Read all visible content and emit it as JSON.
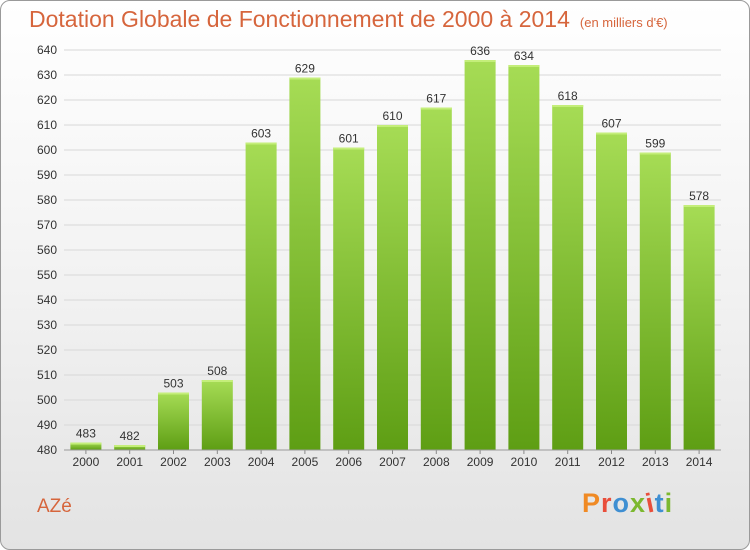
{
  "header": {
    "title": "Dotation Globale de Fonctionnement de 2000 à 2014",
    "subtitle": "(en milliers d'€)"
  },
  "footer": {
    "commune": "AZé",
    "logo_text": "Proxiti"
  },
  "colors": {
    "title": "#d6653c",
    "bar_top": "#a6dc55",
    "bar_bottom": "#5e9e14",
    "grid": "#d8d8d8",
    "logo_letters": [
      "#f08a24",
      "#e94e3b",
      "#3f8fd2",
      "#7cb82f",
      "#e94e3b",
      "#3f8fd2",
      "#7cb82f"
    ]
  },
  "chart_data": {
    "type": "bar",
    "title": "Dotation Globale de Fonctionnement de 2000 à 2014",
    "subtitle": "(en milliers d'€)",
    "xlabel": "",
    "ylabel": "",
    "categories": [
      "2000",
      "2001",
      "2002",
      "2003",
      "2004",
      "2005",
      "2006",
      "2007",
      "2008",
      "2009",
      "2010",
      "2011",
      "2012",
      "2013",
      "2014"
    ],
    "values": [
      483,
      482,
      503,
      508,
      603,
      629,
      601,
      610,
      617,
      636,
      634,
      618,
      607,
      599,
      578
    ],
    "ylim": [
      480,
      640
    ],
    "yticks": [
      480,
      490,
      500,
      510,
      520,
      530,
      540,
      550,
      560,
      570,
      580,
      590,
      600,
      610,
      620,
      630,
      640
    ],
    "grid": true,
    "data_labels": true
  }
}
